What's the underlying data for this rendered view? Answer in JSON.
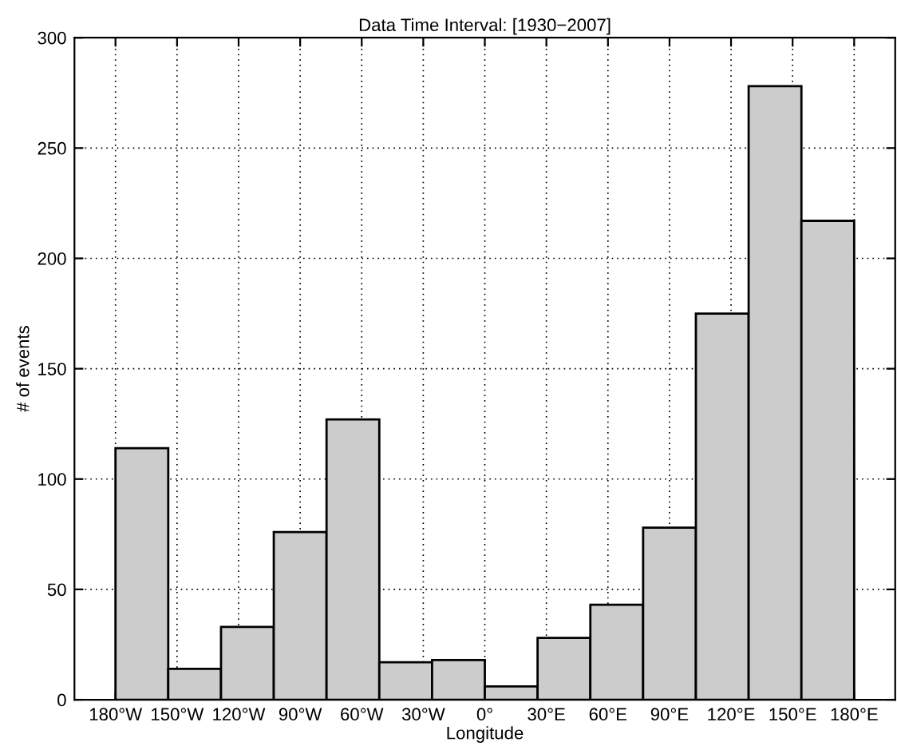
{
  "chart_data": {
    "type": "histogram",
    "title": "Data Time Interval: [1930−2007]",
    "xlabel": "Longitude",
    "ylabel": "# of events",
    "bins": [
      -180,
      -154.29,
      -128.57,
      -102.86,
      -77.14,
      -51.43,
      -25.71,
      0,
      25.71,
      51.43,
      77.14,
      102.86,
      128.57,
      154.29,
      180
    ],
    "values": [
      114,
      14,
      33,
      76,
      127,
      17,
      18,
      6,
      28,
      43,
      78,
      175,
      278,
      217
    ],
    "color": "#cccccc",
    "xlim": [
      -200,
      200
    ],
    "xticks": [
      {
        "value": -180,
        "label": "180°W"
      },
      {
        "value": -150,
        "label": "150°W"
      },
      {
        "value": -120,
        "label": "120°W"
      },
      {
        "value": -90,
        "label": "90°W"
      },
      {
        "value": -60,
        "label": "60°W"
      },
      {
        "value": -30,
        "label": "30°W"
      },
      {
        "value": 0,
        "label": "0°"
      },
      {
        "value": 30,
        "label": "30°E"
      },
      {
        "value": 60,
        "label": "60°E"
      },
      {
        "value": 90,
        "label": "90°E"
      },
      {
        "value": 120,
        "label": "120°E"
      },
      {
        "value": 150,
        "label": "150°E"
      },
      {
        "value": 180,
        "label": "180°E"
      }
    ],
    "ylim": [
      0,
      300
    ],
    "yticks": [
      0,
      50,
      100,
      150,
      200,
      250,
      300
    ],
    "grid": true
  }
}
